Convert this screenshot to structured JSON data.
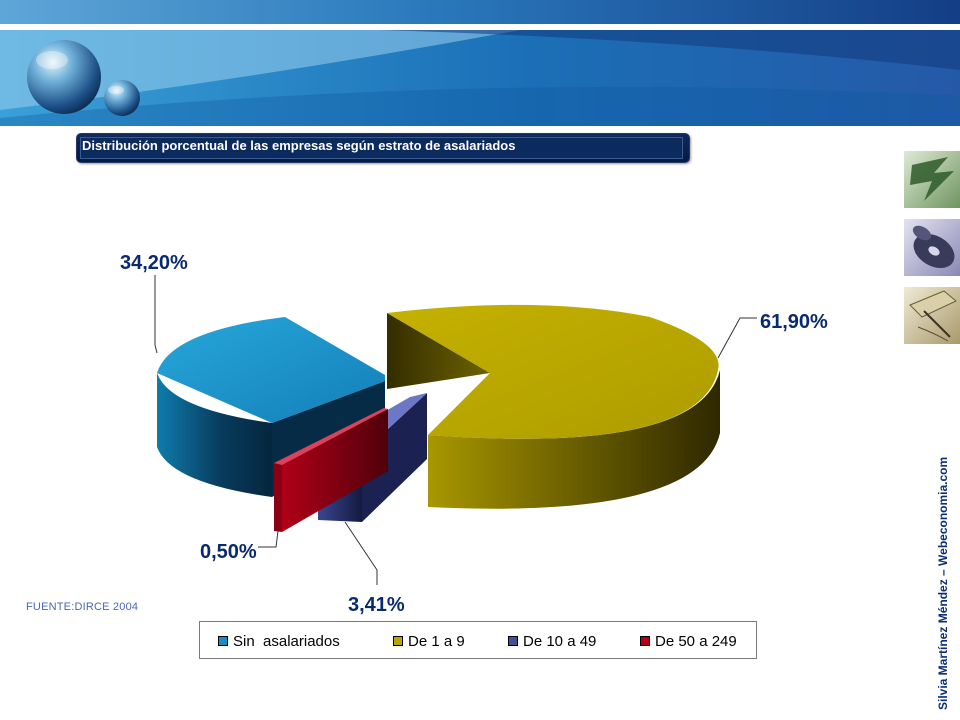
{
  "slide": {
    "title": "Distribución porcentual de las empresas según estrato de asalariados",
    "source": "FUENTE:DIRCE  2004",
    "credit": "Silvia Martínez Méndez – Webeconomia.com"
  },
  "colors": {
    "header_blue": "#1f64a8",
    "title_bar": "#0b2a5e",
    "credit_text": "#0b2e78"
  },
  "icons": [
    "globe-logo-icon",
    "green-abstract-thumbnail",
    "cd-disc-thumbnail",
    "pen-document-thumbnail"
  ],
  "chart_data": {
    "type": "pie",
    "style": "3d-exploded",
    "series": [
      {
        "name": "Sin  asalariados",
        "value": 34.2,
        "label": "34,20%",
        "color": "#1a8ec4"
      },
      {
        "name": "De 1 a 9",
        "value": 61.9,
        "label": "61,90%",
        "color": "#b8a600"
      },
      {
        "name": "De 10 a 49",
        "value": 3.41,
        "label": "3,41%",
        "color": "#434f9a"
      },
      {
        "name": "De 50 a 249",
        "value": 0.5,
        "label": "0,50%",
        "color": "#b00018"
      }
    ],
    "legend": "bottom"
  }
}
